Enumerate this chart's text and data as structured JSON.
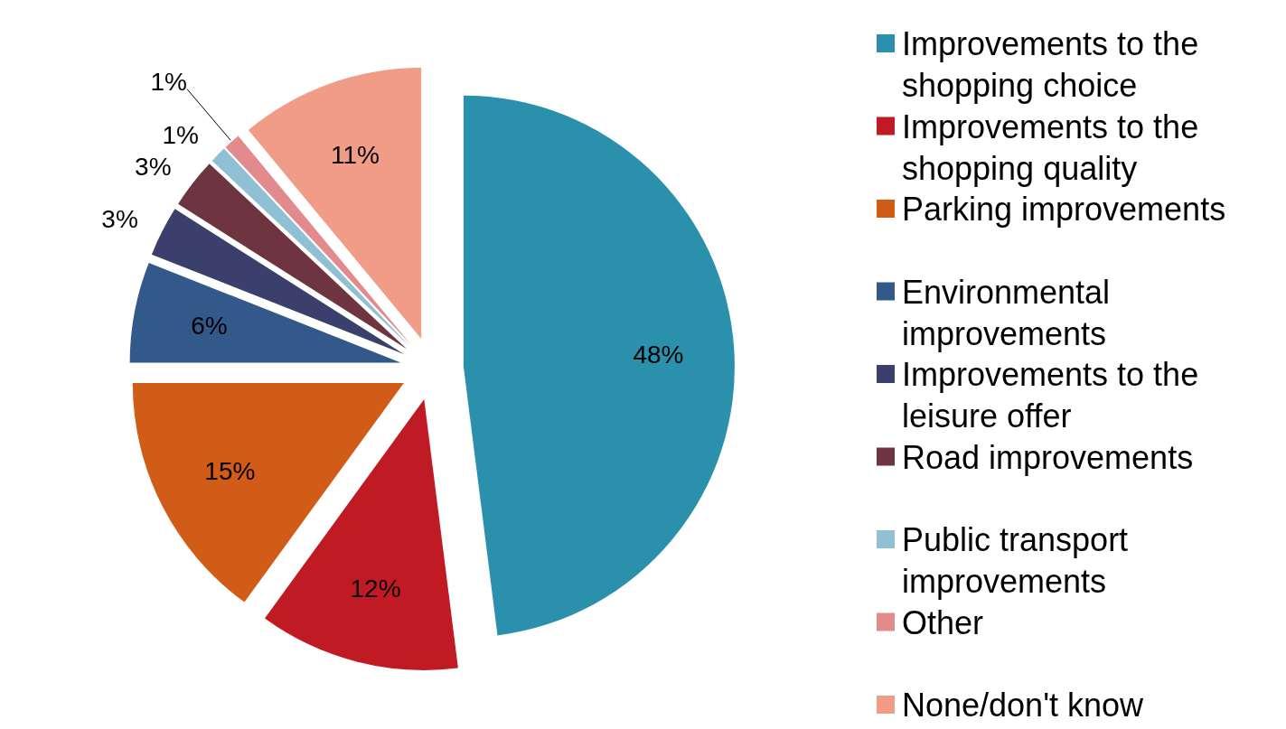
{
  "chart_data": {
    "type": "pie",
    "categories": [
      "Improvements to the shopping choice",
      "Improvements to the shopping quality",
      "Parking improvements",
      "Environmental improvements",
      "Improvements to the leisure offer",
      "Road improvements",
      "Public transport improvements",
      "Other",
      "None/don't know"
    ],
    "values": [
      48,
      12,
      15,
      6,
      3,
      3,
      1,
      1,
      11
    ],
    "value_labels": [
      "48%",
      "12%",
      "15%",
      "6%",
      "3%",
      "3%",
      "1%",
      "1%",
      "11%"
    ],
    "colors": [
      "#2a90ab",
      "#c01b24",
      "#d15c17",
      "#33598b",
      "#3b3f6b",
      "#6e3440",
      "#8fc0d3",
      "#e38b8c",
      "#f09c87"
    ],
    "legend": "right"
  }
}
